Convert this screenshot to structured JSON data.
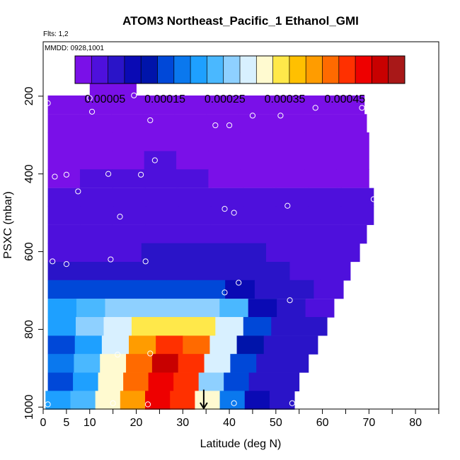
{
  "chart_data": {
    "type": "heatmap",
    "title": "ATOM3 Northeast_Pacific_1 Ethanol_GMI",
    "subtitle_flights": "Flts: 1,2",
    "subtitle_dates": "MMDD: 0928,1001",
    "xlabel": "Latitude (deg N)",
    "ylabel": "PSXC (mbar)",
    "x_range": [
      0,
      85
    ],
    "y_range": [
      1005,
      60
    ],
    "y_reversed": true,
    "x_ticks": [
      0,
      5,
      10,
      20,
      30,
      40,
      50,
      60,
      70,
      80
    ],
    "x_minor_ticks": [
      15,
      25,
      35,
      45,
      55,
      65,
      75,
      85
    ],
    "y_ticks": [
      200,
      400,
      600,
      800,
      1000
    ],
    "color_scale": {
      "min": 0.0,
      "max": 0.00055,
      "tick_values": [
        5e-05,
        0.00015,
        0.00025,
        0.00035,
        0.00045
      ],
      "tick_labels": [
        "0.00005",
        "0.00015",
        "0.00025",
        "0.00035",
        "0.00045"
      ],
      "colors": [
        "#7a10e8",
        "#4e10dc",
        "#2a14c8",
        "#0a0ab4",
        "#0014aa",
        "#0048d8",
        "#0a78ee",
        "#1ea0ff",
        "#4ab8ff",
        "#8ed0ff",
        "#d8f0ff",
        "#fffad0",
        "#ffe84a",
        "#ffc000",
        "#ff9c00",
        "#ff6a00",
        "#ff3000",
        "#ee0000",
        "#c80000",
        "#a81818"
      ]
    },
    "levels": [
      {
        "pressure": 175,
        "x_start": 10,
        "x_end": 20,
        "cells": [
          1.2e-05,
          1.2e-05
        ]
      },
      {
        "pressure": 222,
        "x_start": 1,
        "x_end": 69,
        "cells": [
          1.5e-05,
          1.4e-05,
          1.4e-05,
          1.3e-05,
          1.3e-05,
          1.2e-05,
          1.2e-05,
          1.3e-05,
          1.3e-05,
          1.4e-05
        ]
      },
      {
        "pressure": 270,
        "x_start": 1,
        "x_end": 69.5,
        "cells": [
          1.8e-05,
          1.7e-05,
          1.6e-05,
          1.5e-05,
          1.4e-05,
          1.5e-05,
          1.6e-05,
          1.7e-05,
          1.7e-05,
          1.6e-05
        ]
      },
      {
        "pressure": 317,
        "x_start": 1,
        "x_end": 70,
        "cells": [
          2e-05,
          2e-05,
          1.9e-05,
          1.8e-05,
          1.8e-05,
          1.9e-05,
          2e-05,
          2e-05,
          1.9e-05,
          1.8e-05
        ]
      },
      {
        "pressure": 365,
        "x_start": 1,
        "x_end": 70,
        "cells": [
          2.3e-05,
          2.4e-05,
          2.6e-05,
          2.8e-05,
          2.2e-05,
          2.1e-05,
          2.2e-05,
          2.3e-05,
          2.2e-05,
          2.1e-05
        ]
      },
      {
        "pressure": 412,
        "x_start": 1,
        "x_end": 70,
        "cells": [
          2.6e-05,
          2.8e-05,
          3e-05,
          3.3e-05,
          2.8e-05,
          2.5e-05,
          2.5e-05,
          2.6e-05,
          2.5e-05,
          2.4e-05
        ]
      },
      {
        "pressure": 460,
        "x_start": 1,
        "x_end": 71,
        "cells": [
          3e-05,
          3.3e-05,
          3.6e-05,
          3.8e-05,
          3.3e-05,
          2.9e-05,
          3.1e-05,
          3.4e-05,
          3.1e-05,
          2.8e-05
        ]
      },
      {
        "pressure": 507,
        "x_start": 1,
        "x_end": 71,
        "cells": [
          3.5e-05,
          3.7e-05,
          4e-05,
          4.3e-05,
          4.1e-05,
          3.8e-05,
          3.8e-05,
          4.2e-05,
          4e-05,
          3.6e-05
        ]
      },
      {
        "pressure": 555,
        "x_start": 1,
        "x_end": 69.5,
        "cells": [
          3.8e-05,
          4e-05,
          4.3e-05,
          4.6e-05,
          4.6e-05,
          4.4e-05,
          4.5e-05,
          4.7e-05,
          4.5e-05,
          4.2e-05
        ]
      },
      {
        "pressure": 602,
        "x_start": 1,
        "x_end": 68,
        "cells": [
          4.5e-05,
          5e-05,
          5.4e-05,
          5.7e-05,
          5.7e-05,
          5.6e-05,
          5.7e-05,
          5.5e-05,
          5.2e-05,
          4.8e-05
        ]
      },
      {
        "pressure": 650,
        "x_start": 1,
        "x_end": 66,
        "cells": [
          6e-05,
          6.8e-05,
          7.4e-05,
          7.2e-05,
          6.8e-05,
          6.6e-05,
          6.2e-05,
          5.8e-05,
          5.5e-05,
          5.2e-05
        ]
      },
      {
        "pressure": 697,
        "x_start": 1,
        "x_end": 64.5,
        "cells": [
          0.00014,
          0.00015,
          0.000155,
          0.00015,
          0.000145,
          0.00014,
          0.00011,
          7e-05,
          6e-05,
          5.5e-05
        ]
      },
      {
        "pressure": 745,
        "x_start": 1,
        "x_end": 62.5,
        "cells": [
          0.0002,
          0.00023,
          0.00026,
          0.00027,
          0.00027,
          0.00026,
          0.00023,
          0.00011,
          6.5e-05,
          5.5e-05
        ]
      },
      {
        "pressure": 792,
        "x_start": 1,
        "x_end": 61,
        "cells": [
          0.00022,
          0.00026,
          0.00029,
          0.00033,
          0.00035,
          0.00034,
          0.00029,
          0.00014,
          7e-05,
          6e-05
        ]
      },
      {
        "pressure": 840,
        "x_start": 1,
        "x_end": 59,
        "cells": [
          0.00016,
          0.00022,
          0.0003,
          0.0004,
          0.00046,
          0.00042,
          0.00028,
          0.00013,
          7e-05,
          6e-05
        ]
      },
      {
        "pressure": 887,
        "x_start": 1,
        "x_end": 57,
        "cells": [
          0.00017,
          0.00024,
          0.00032,
          0.00044,
          0.0005,
          0.00046,
          0.00028,
          0.00015,
          8e-05,
          6.5e-05
        ]
      },
      {
        "pressure": 935,
        "x_start": 1,
        "x_end": 55,
        "cells": [
          0.00015,
          0.00022,
          0.00031,
          0.00043,
          0.00049,
          0.00045,
          0.00027,
          0.00015,
          8e-05,
          7e-05
        ]
      },
      {
        "pressure": 982,
        "x_start": 0.5,
        "x_end": 54,
        "cells": [
          0.0002,
          0.00024,
          0.00031,
          0.00039,
          0.00047,
          0.00045,
          0.00032,
          0.00018,
          9e-05,
          7e-05
        ]
      }
    ],
    "points": [
      {
        "lat": 1,
        "p": 218
      },
      {
        "lat": 10,
        "p": 205
      },
      {
        "lat": 10.5,
        "p": 240
      },
      {
        "lat": 19.5,
        "p": 198
      },
      {
        "lat": 23,
        "p": 262
      },
      {
        "lat": 37,
        "p": 275
      },
      {
        "lat": 40,
        "p": 275
      },
      {
        "lat": 45,
        "p": 250
      },
      {
        "lat": 51,
        "p": 250
      },
      {
        "lat": 58.5,
        "p": 230
      },
      {
        "lat": 68.5,
        "p": 230
      },
      {
        "lat": 24,
        "p": 365
      },
      {
        "lat": 2.5,
        "p": 407
      },
      {
        "lat": 5,
        "p": 402
      },
      {
        "lat": 7.5,
        "p": 445
      },
      {
        "lat": 14,
        "p": 400
      },
      {
        "lat": 21,
        "p": 402
      },
      {
        "lat": 16.5,
        "p": 510
      },
      {
        "lat": 39,
        "p": 490
      },
      {
        "lat": 41,
        "p": 500
      },
      {
        "lat": 52.5,
        "p": 482
      },
      {
        "lat": 71,
        "p": 465
      },
      {
        "lat": 2,
        "p": 625
      },
      {
        "lat": 5,
        "p": 632
      },
      {
        "lat": 14.5,
        "p": 620
      },
      {
        "lat": 22,
        "p": 625
      },
      {
        "lat": 42,
        "p": 680
      },
      {
        "lat": 39,
        "p": 705
      },
      {
        "lat": 53,
        "p": 725
      },
      {
        "lat": 16,
        "p": 865
      },
      {
        "lat": 23,
        "p": 862
      },
      {
        "lat": 1,
        "p": 993
      },
      {
        "lat": 15,
        "p": 990
      },
      {
        "lat": 22.5,
        "p": 993
      },
      {
        "lat": 41,
        "p": 990
      },
      {
        "lat": 53.5,
        "p": 990
      }
    ],
    "arrow_marker": {
      "lat": 34.5,
      "p_from": 955,
      "p_to": 1005
    }
  }
}
